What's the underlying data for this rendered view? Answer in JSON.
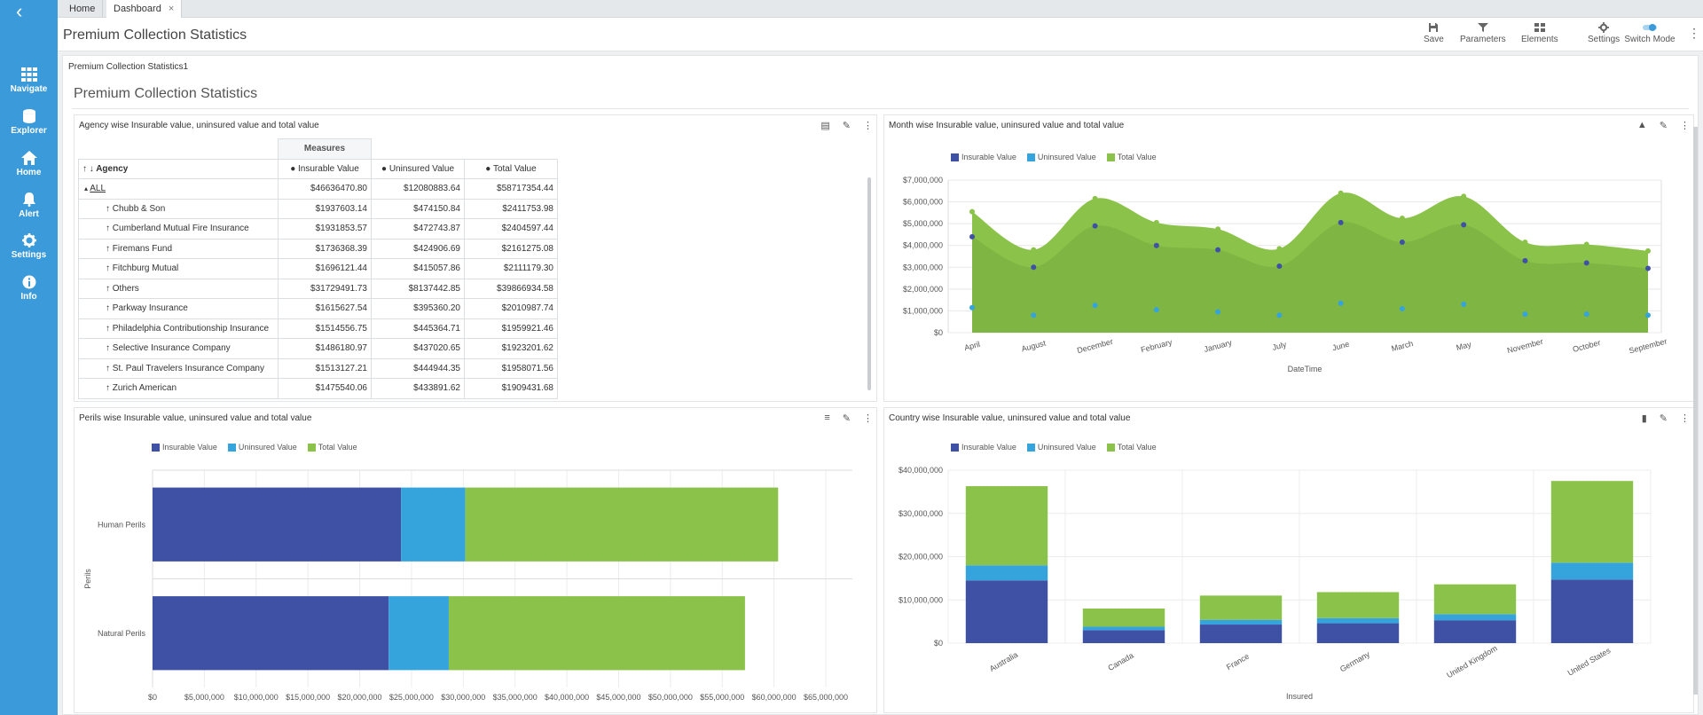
{
  "tabs": [
    {
      "label": "Home"
    },
    {
      "label": "Dashboard"
    }
  ],
  "sidebar": {
    "items": [
      {
        "label": "Navigate",
        "icon": "grid-icon"
      },
      {
        "label": "Explorer",
        "icon": "database-icon"
      },
      {
        "label": "Home",
        "icon": "home-icon"
      },
      {
        "label": "Alert",
        "icon": "bell-icon"
      },
      {
        "label": "Settings",
        "icon": "gear-icon"
      },
      {
        "label": "Info",
        "icon": "info-icon"
      }
    ]
  },
  "header": {
    "title": "Premium Collection Statistics",
    "tools": [
      {
        "label": "Save",
        "icon": "save-icon"
      },
      {
        "label": "Parameters",
        "icon": "filter-icon"
      },
      {
        "label": "Elements",
        "icon": "elements-icon"
      },
      {
        "label": "Settings",
        "icon": "gear-icon"
      },
      {
        "label": "Switch Mode",
        "icon": "toggle-icon"
      }
    ]
  },
  "dashboard": {
    "crumb": "Premium Collection Statistics1",
    "title": "Premium Collection Statistics"
  },
  "colors": {
    "insurable": "#3f51a5",
    "uninsured": "#35a3dc",
    "total": "#8bc34a",
    "sidebar": "#3b9ad9"
  },
  "table_widget": {
    "title": "Agency wise Insurable value, uninsured value and total value",
    "measures_label": "Measures",
    "row_header": "Agency",
    "columns": [
      "Insurable Value",
      "Uninsured Value",
      "Total Value"
    ],
    "rows": [
      {
        "label": "ALL",
        "values": [
          "$46636470.80",
          "$12080883.64",
          "$58717354.44"
        ]
      },
      {
        "label": "Chubb & Son",
        "values": [
          "$1937603.14",
          "$474150.84",
          "$2411753.98"
        ]
      },
      {
        "label": "Cumberland Mutual Fire Insurance",
        "values": [
          "$1931853.57",
          "$472743.87",
          "$2404597.44"
        ]
      },
      {
        "label": "Firemans Fund",
        "values": [
          "$1736368.39",
          "$424906.69",
          "$2161275.08"
        ]
      },
      {
        "label": "Fitchburg Mutual",
        "values": [
          "$1696121.44",
          "$415057.86",
          "$2111179.30"
        ]
      },
      {
        "label": "Others",
        "values": [
          "$31729491.73",
          "$8137442.85",
          "$39866934.58"
        ]
      },
      {
        "label": "Parkway Insurance",
        "values": [
          "$1615627.54",
          "$395360.20",
          "$2010987.74"
        ]
      },
      {
        "label": "Philadelphia Contributionship Insurance",
        "values": [
          "$1514556.75",
          "$445364.71",
          "$1959921.46"
        ]
      },
      {
        "label": "Selective Insurance Company",
        "values": [
          "$1486180.97",
          "$437020.65",
          "$1923201.62"
        ]
      },
      {
        "label": "St. Paul Travelers Insurance Company",
        "values": [
          "$1513127.21",
          "$444944.35",
          "$1958071.56"
        ]
      },
      {
        "label": "Zurich American",
        "values": [
          "$1475540.06",
          "$433891.62",
          "$1909431.68"
        ]
      }
    ]
  },
  "area_widget": {
    "title": "Month wise Insurable value, uninsured value and total value"
  },
  "hbar_widget": {
    "title": "Perils wise Insurable value, uninsured value and total value"
  },
  "vbar_widget": {
    "title": "Country wise Insurable value, uninsured value and total value"
  },
  "chart_data": [
    {
      "type": "area",
      "title": "Month wise Insurable value, uninsured value and total value",
      "xlabel": "DateTime",
      "ylabel": "",
      "ylim": [
        0,
        7000000
      ],
      "yticks": [
        "$0",
        "$1,000,000",
        "$2,000,000",
        "$3,000,000",
        "$4,000,000",
        "$5,000,000",
        "$6,000,000",
        "$7,000,000"
      ],
      "categories": [
        "April",
        "August",
        "December",
        "February",
        "January",
        "July",
        "June",
        "March",
        "May",
        "November",
        "October",
        "September"
      ],
      "series": [
        {
          "name": "Insurable Value",
          "values": [
            4400000,
            3000000,
            4900000,
            4000000,
            3800000,
            3050000,
            5050000,
            4150000,
            4950000,
            3300000,
            3200000,
            2950000
          ]
        },
        {
          "name": "Uninsured Value",
          "values": [
            1150000,
            800000,
            1250000,
            1050000,
            950000,
            800000,
            1350000,
            1100000,
            1300000,
            850000,
            850000,
            800000
          ]
        },
        {
          "name": "Total Value",
          "values": [
            5550000,
            3800000,
            6150000,
            5050000,
            4750000,
            3850000,
            6400000,
            5250000,
            6250000,
            4150000,
            4050000,
            3750000
          ]
        }
      ],
      "legend": "top-left",
      "grid": true
    },
    {
      "type": "bar",
      "orientation": "horizontal",
      "stacked": true,
      "title": "Perils wise Insurable value, uninsured value and total value",
      "ylabel": "Perils",
      "xlim": [
        0,
        65000000
      ],
      "xticks": [
        "$0",
        "$5,000,000",
        "$10,000,000",
        "$15,000,000",
        "$20,000,000",
        "$25,000,000",
        "$30,000,000",
        "$35,000,000",
        "$40,000,000",
        "$45,000,000",
        "$50,000,000",
        "$55,000,000",
        "$60,000,000",
        "$65,000,000"
      ],
      "categories": [
        "Human Perils",
        "Natural Perils"
      ],
      "series": [
        {
          "name": "Insurable Value",
          "values": [
            24000000,
            22800000
          ]
        },
        {
          "name": "Uninsured Value",
          "values": [
            6200000,
            5800000
          ]
        },
        {
          "name": "Total Value",
          "values": [
            30200000,
            28600000
          ]
        }
      ],
      "legend": "top-left",
      "grid": true
    },
    {
      "type": "bar",
      "orientation": "vertical",
      "stacked": true,
      "title": "Country wise Insurable value, uninsured value and total value",
      "xlabel": "Insured",
      "ylim": [
        0,
        40000000
      ],
      "yticks": [
        "$0",
        "$10,000,000",
        "$20,000,000",
        "$30,000,000",
        "$40,000,000"
      ],
      "categories": [
        "Australia",
        "Canada",
        "France",
        "Germany",
        "United Kingdom",
        "United States"
      ],
      "series": [
        {
          "name": "Insurable Value",
          "values": [
            14500000,
            3000000,
            4300000,
            4600000,
            5300000,
            14700000
          ]
        },
        {
          "name": "Uninsured Value",
          "values": [
            3500000,
            800000,
            1100000,
            1200000,
            1400000,
            3900000
          ]
        },
        {
          "name": "Total Value",
          "values": [
            18300000,
            4200000,
            5600000,
            6000000,
            6900000,
            18900000
          ]
        }
      ],
      "legend": "top-left",
      "grid": true
    }
  ]
}
